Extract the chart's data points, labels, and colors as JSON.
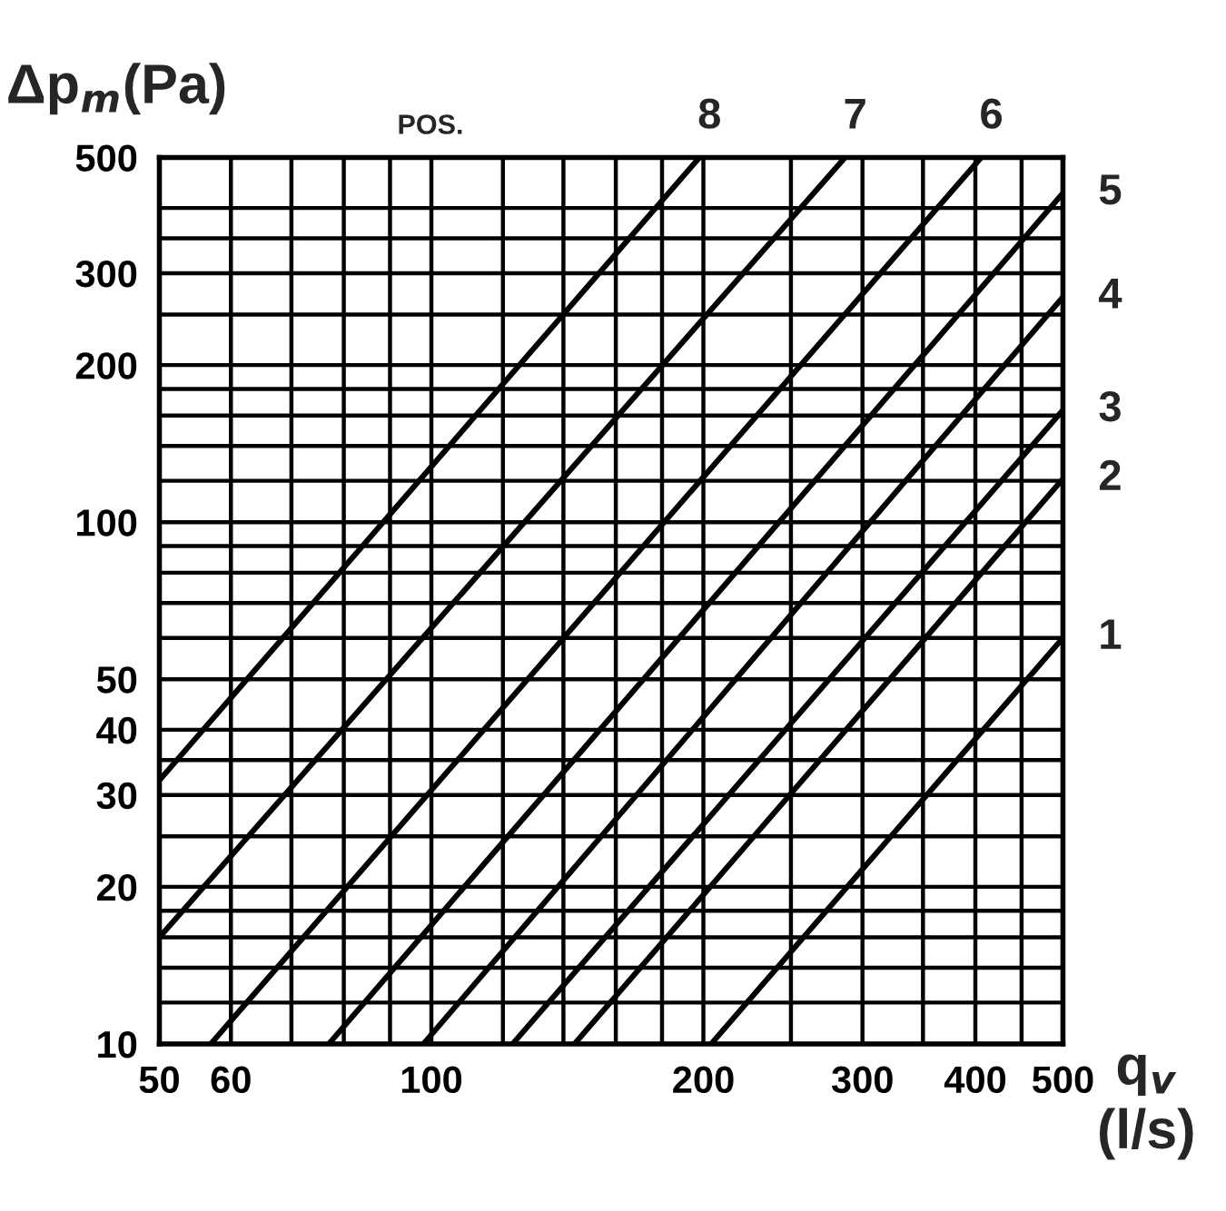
{
  "chart_data": {
    "type": "line",
    "ylabel": "Δp$_{m}$(Pa)",
    "xlabel": "q$_{v}$\n(l/s)",
    "annotations": [
      "POS."
    ],
    "log": "xy",
    "xlim": [
      50,
      500
    ],
    "ylim": [
      10,
      500
    ],
    "xticks": [
      50,
      60,
      {
        "value": 70,
        "label": null
      },
      {
        "value": 80,
        "label": null
      },
      {
        "value": 90,
        "label": null
      },
      100,
      {
        "value": 120,
        "label": null
      },
      {
        "value": 140,
        "label": null
      },
      {
        "value": 160,
        "label": null
      },
      {
        "value": 180,
        "label": null
      },
      200,
      {
        "value": 250,
        "label": null
      },
      300,
      {
        "value": 350,
        "label": null
      },
      400,
      {
        "value": 450,
        "label": null
      },
      500
    ],
    "yticks": [
      10,
      {
        "value": 12,
        "label": null
      },
      {
        "value": 14,
        "label": null
      },
      {
        "value": 16,
        "label": null
      },
      {
        "value": 18,
        "label": null
      },
      20,
      {
        "value": 25,
        "label": null
      },
      30,
      {
        "value": 35,
        "label": null
      },
      40,
      50,
      {
        "value": 60,
        "label": null
      },
      {
        "value": 70,
        "label": null
      },
      {
        "value": 80,
        "label": null
      },
      {
        "value": 90,
        "label": null
      },
      100,
      {
        "value": 120,
        "label": null
      },
      {
        "value": 140,
        "label": null
      },
      {
        "value": 160,
        "label": null
      },
      {
        "value": 180,
        "label": null
      },
      200,
      {
        "value": 250,
        "label": null
      },
      300,
      {
        "value": 350,
        "label": null
      },
      {
        "value": 400,
        "label": null
      },
      500
    ],
    "grid": true,
    "legend": false,
    "marker": "none",
    "line_style": "solid",
    "series": [
      {
        "name": "8",
        "color": "#000000",
        "x": [
          50,
          198
        ],
        "values": [
          32,
          500
        ]
      },
      {
        "name": "7",
        "color": "#000000",
        "x": [
          50,
          287
        ],
        "values": [
          16,
          500
        ]
      },
      {
        "name": "6",
        "color": "#000000",
        "x": [
          57,
          406
        ],
        "values": [
          10,
          500
        ]
      },
      {
        "name": "5",
        "color": "#000000",
        "x": [
          77,
          500
        ],
        "values": [
          10,
          427
        ]
      },
      {
        "name": "4",
        "color": "#000000",
        "x": [
          98,
          500
        ],
        "values": [
          10,
          270
        ]
      },
      {
        "name": "3",
        "color": "#000000",
        "x": [
          123,
          500
        ],
        "values": [
          10,
          164
        ]
      },
      {
        "name": "2",
        "color": "#000000",
        "x": [
          144,
          500
        ],
        "values": [
          10,
          121
        ]
      },
      {
        "name": "1",
        "color": "#000000",
        "x": [
          204,
          500
        ],
        "values": [
          10,
          60
        ]
      }
    ]
  }
}
